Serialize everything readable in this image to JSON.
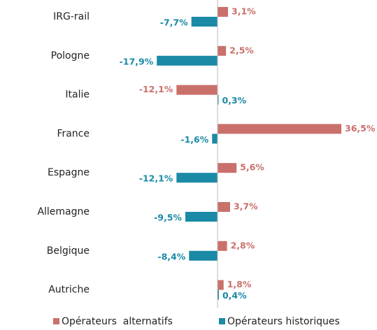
{
  "chart_data": {
    "type": "hbar",
    "categories": [
      "IRG-rail",
      "Pologne",
      "Italie",
      "France",
      "Espagne",
      "Allemagne",
      "Belgique",
      "Autriche"
    ],
    "series": [
      {
        "name": "Opérateurs  alternatifs",
        "color": "#c9706b",
        "values": [
          3.1,
          2.5,
          -12.1,
          36.5,
          5.6,
          3.7,
          2.8,
          1.8
        ],
        "value_labels": [
          "3,1%",
          "2,5%",
          "-12,1%",
          "36,5%",
          "5,6%",
          "3,7%",
          "2,8%",
          "1,8%"
        ]
      },
      {
        "name": "Opérateurs historiques",
        "color": "#1a8aa6",
        "values": [
          -7.7,
          -17.9,
          0.3,
          -1.6,
          -12.1,
          -9.5,
          -8.4,
          0.4
        ],
        "value_labels": [
          "-7,7%",
          "-17,9%",
          "0,3%",
          "-1,6%",
          "-12,1%",
          "-9,5%",
          "-8,4%",
          "0,4%"
        ]
      }
    ],
    "xlim": [
      -20,
      40
    ],
    "legend": "bottom"
  }
}
